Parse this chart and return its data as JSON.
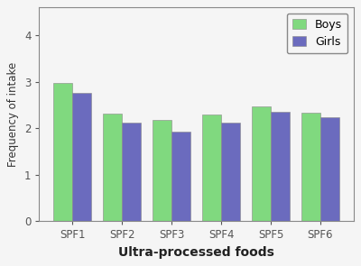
{
  "categories": [
    "SPF1",
    "SPF2",
    "SPF3",
    "SPF4",
    "SPF5",
    "SPF6"
  ],
  "boys_values": [
    2.98,
    2.32,
    2.18,
    2.3,
    2.46,
    2.33
  ],
  "girls_values": [
    2.76,
    2.12,
    1.93,
    2.12,
    2.36,
    2.24
  ],
  "boys_color": "#80D97F",
  "girls_color": "#6B6BBE",
  "xlabel": "Ultra-processed foods",
  "ylabel": "Frequency of intake",
  "ylim": [
    0,
    4.6
  ],
  "yticks": [
    0,
    1,
    2,
    3,
    4
  ],
  "legend_labels": [
    "Boys",
    "Girls"
  ],
  "bar_width": 0.38,
  "background_color": "#f5f5f5",
  "edge_color": "#888888",
  "axis_color": "#555555",
  "spine_color": "#888888"
}
